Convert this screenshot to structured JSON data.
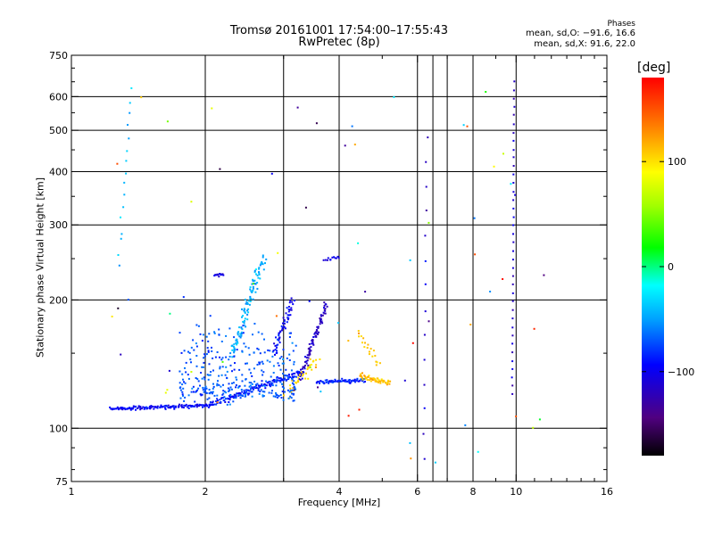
{
  "chart_data": {
    "type": "scatter",
    "title": "Tromsø 20161001 17:54:00–17:55:43",
    "subtitle": "RwPretec (8p)",
    "xlabel": "Frequency [MHz]",
    "ylabel": "Stationary phase Virtual Height [km]",
    "x_scale": "log",
    "y_scale": "log",
    "xlim": [
      1,
      16
    ],
    "ylim": [
      75,
      750
    ],
    "x_ticks": [
      1,
      2,
      4,
      6,
      8,
      10,
      16
    ],
    "x_minor_ticks": [
      3,
      5,
      7,
      9,
      11,
      12,
      13,
      14,
      15
    ],
    "y_ticks": [
      75,
      100,
      200,
      300,
      400,
      500,
      600,
      750
    ],
    "y_minor_ticks": [
      80,
      90,
      150,
      250,
      350,
      450,
      550,
      650,
      700
    ],
    "grid": true,
    "extra_vertical_lines": [
      3,
      6.5,
      7
    ],
    "phases_legend": {
      "title": "Phases",
      "ordinary": "mean, sd,O: −91.6, 16.6",
      "extraordinary": "mean, sd,X:  91.6, 22.0"
    },
    "colorbar": {
      "label": "[deg]",
      "range": [
        -180,
        180
      ],
      "ticks": [
        100,
        0,
        -100
      ]
    },
    "clusters": [
      {
        "name": "ground trace",
        "x": [
          1.22,
          2.02
        ],
        "y": [
          111,
          113
        ],
        "n": 130,
        "phase": -96,
        "spread": 0.012
      },
      {
        "name": "trace ramp",
        "x": [
          2.02,
          3.3
        ],
        "y": [
          113,
          135
        ],
        "n": 150,
        "phase": -90,
        "spread": 0.02
      },
      {
        "name": "steep rise",
        "x": [
          3.25,
          3.75
        ],
        "y": [
          130,
          195
        ],
        "n": 90,
        "phase": -118,
        "spread": 0.03
      },
      {
        "name": "o-trace tail",
        "x": [
          3.55,
          4.6
        ],
        "y": [
          128,
          130
        ],
        "n": 70,
        "phase": -85,
        "spread": 0.012
      },
      {
        "name": "x-trace",
        "x": [
          4.45,
          5.2
        ],
        "y": [
          133,
          128
        ],
        "n": 60,
        "phase": 112,
        "spread": 0.02
      },
      {
        "name": "upper x echoes",
        "x": [
          3.05,
          3.6
        ],
        "y": [
          120,
          145
        ],
        "n": 35,
        "phase": 105,
        "spread": 0.05
      },
      {
        "name": "spread F body",
        "x": [
          1.75,
          3.2
        ],
        "y": [
          118,
          185
        ],
        "n": 340,
        "phase": -70,
        "spread": 0.11
      },
      {
        "name": "spread F ridge",
        "x": [
          2.3,
          2.7
        ],
        "y": [
          150,
          250
        ],
        "n": 110,
        "phase": -45,
        "spread": 0.05
      },
      {
        "name": "spread F column",
        "x": [
          2.85,
          3.15
        ],
        "y": [
          150,
          200
        ],
        "n": 55,
        "phase": -95,
        "spread": 0.04
      },
      {
        "name": "200 km clump",
        "x": [
          2.1,
          2.2
        ],
        "y": [
          228,
          230
        ],
        "n": 14,
        "phase": -105,
        "spread": 0.01
      },
      {
        "name": "250 km clump",
        "x": [
          3.7,
          4.0
        ],
        "y": [
          248,
          252
        ],
        "n": 12,
        "phase": -105,
        "spread": 0.01
      },
      {
        "name": "5 MHz arc",
        "x": [
          4.4,
          4.9
        ],
        "y": [
          170,
          140
        ],
        "n": 20,
        "phase": 110,
        "spread": 0.03
      },
      {
        "name": "10 MHz column",
        "x": [
          9.8,
          9.9
        ],
        "y": [
          120,
          650
        ],
        "n": 38,
        "phase": -110,
        "spread": 0.005
      },
      {
        "name": "6.5 MHz column",
        "x": [
          6.2,
          6.3
        ],
        "y": [
          85,
          480
        ],
        "n": 14,
        "phase": -110,
        "spread": 0.01
      },
      {
        "name": "1.3 MHz column",
        "x": [
          1.28,
          1.36
        ],
        "y": [
          240,
          620
        ],
        "n": 16,
        "phase": -40,
        "spread": 0.02
      },
      {
        "name": "scattered noise",
        "x": [
          1.2,
          12
        ],
        "y": [
          80,
          620
        ],
        "n": 70,
        "phase": "random",
        "spread": 1
      }
    ]
  }
}
